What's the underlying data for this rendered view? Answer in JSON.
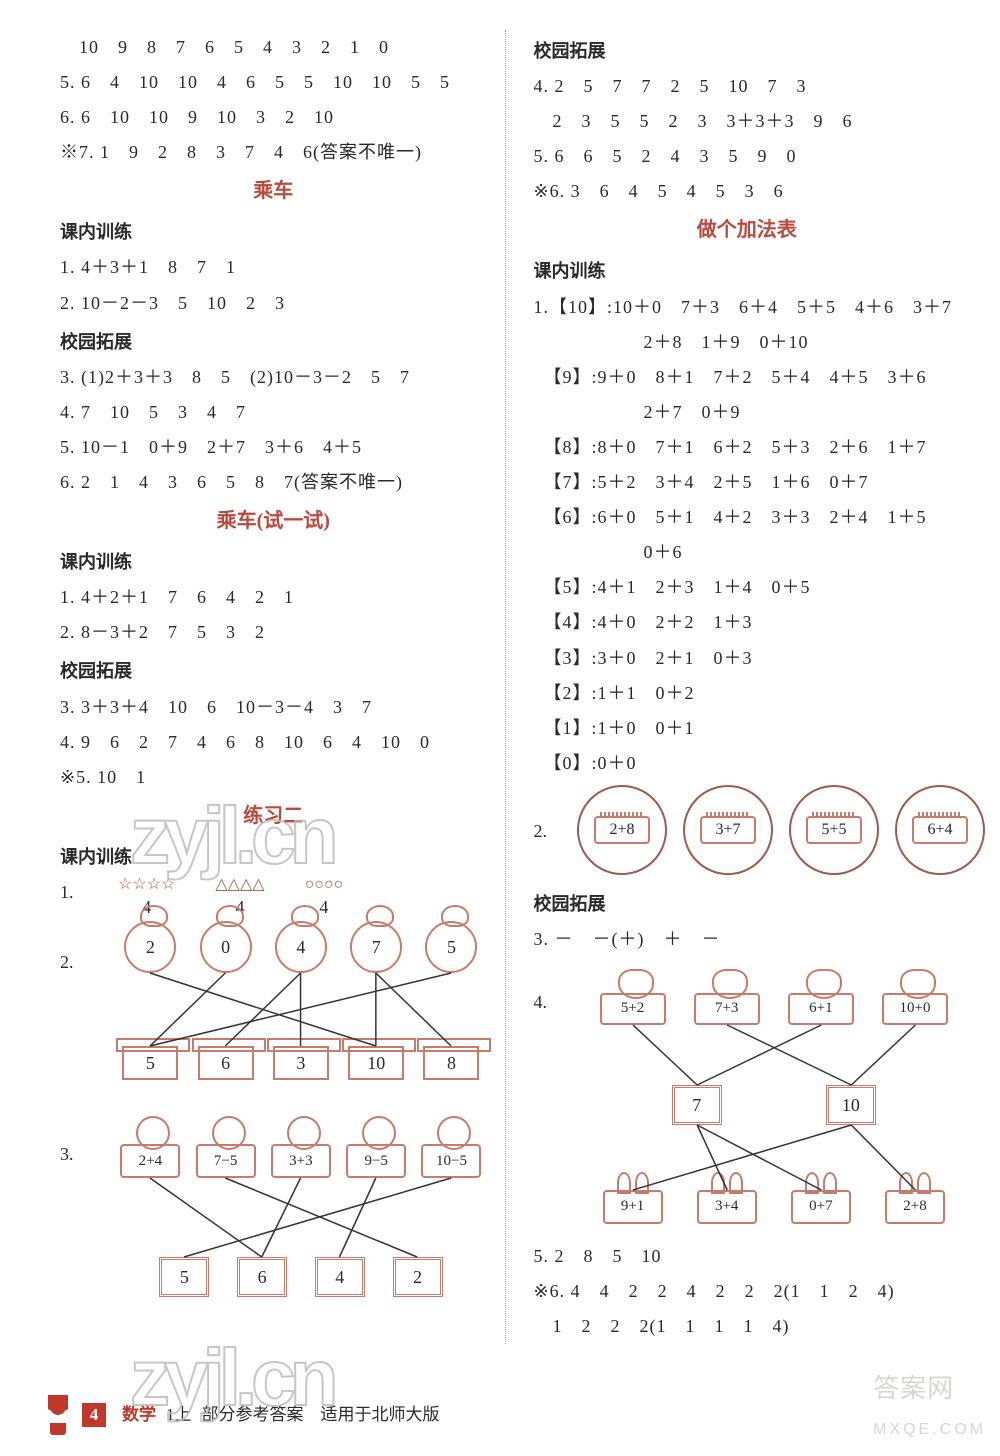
{
  "left": {
    "lines_top": [
      "　10　9　8　7　6　5　4　3　2　1　0",
      "5. 6　4　10　10　4　6　5　5　10　10　5　5",
      "6. 6　10　10　9　10　3　2　10",
      "※7. 1　9　2　8　3　7　4　6(答案不唯一)"
    ],
    "h1": "乘车",
    "sub1": "课内训练",
    "sec1": [
      "1. 4＋3＋1　8　7　1",
      "2. 10－2－3　5　10　2　3"
    ],
    "sub2": "校园拓展",
    "sec2": [
      "3. (1)2＋3＋3　8　5　(2)10－3－2　5　7",
      "4. 7　10　5　3　4　7",
      "5. 10－1　0＋9　2＋7　3＋6　4＋5",
      "6. 2　1　4　3　6　5　8　7(答案不唯一)"
    ],
    "h2": "乘车(试一试)",
    "sub3": "课内训练",
    "sec3": [
      "1. 4＋2＋1　7　6　4　2　1",
      "2. 8－3＋2　7　5　3　2"
    ],
    "sub4": "校园拓展",
    "sec4": [
      "3. 3＋3＋4　10　6　10－3－4　3　7",
      "4. 9　6　2　7　4　6　8　10　6　4　10　0",
      "※5. 10　1"
    ],
    "h3": "练习二",
    "sub5": "课内训练",
    "q1": {
      "label": "1.",
      "cells": [
        {
          "shapes": "☆☆☆☆",
          "num": "4"
        },
        {
          "shapes": "△△△△",
          "num": "4"
        },
        {
          "shapes": "○○○○",
          "num": "4"
        }
      ]
    },
    "q2": {
      "label": "2.",
      "top": [
        "2",
        "0",
        "4",
        "7",
        "5"
      ],
      "bot": [
        "5",
        "6",
        "3",
        "10",
        "8"
      ],
      "edges": [
        [
          0,
          3
        ],
        [
          1,
          0
        ],
        [
          2,
          2
        ],
        [
          2,
          1
        ],
        [
          3,
          4
        ],
        [
          3,
          3
        ],
        [
          4,
          0
        ]
      ]
    },
    "q3": {
      "label": "3.",
      "top": [
        "2+4",
        "7−5",
        "3+3",
        "9−5",
        "10−5"
      ],
      "bot": [
        "5",
        "6",
        "4",
        "2"
      ],
      "edges": [
        [
          0,
          1
        ],
        [
          1,
          3
        ],
        [
          2,
          1
        ],
        [
          3,
          2
        ],
        [
          4,
          0
        ]
      ]
    }
  },
  "right": {
    "sub1": "校园拓展",
    "sec1": [
      "4. 2　5　7　7　2　5　10　7　3",
      "　2　3　5　5　2　3　3＋3＋3　9　6",
      "5. 6　6　5　2　4　3　5　9　0",
      "※6. 3　6　4　5　4　5　3　6"
    ],
    "h1": "做个加法表",
    "sub2": "课内训练",
    "sec2": [
      "1.【10】:10＋0　7＋3　6＋4　5＋5　4＋6　3＋7",
      "　　2＋8　1＋9　0＋10",
      "　【9】:9＋0　8＋1　7＋2　5＋4　4＋5　3＋6",
      "　　2＋7　0＋9",
      "　【8】:8＋0　7＋1　6＋2　5＋3　2＋6　1＋7",
      "　【7】:5＋2　3＋4　2＋5　1＋6　0＋7",
      "　【6】:6＋0　5＋1　4＋2　3＋3　2＋4　1＋5",
      "　　0＋6",
      "　【5】:4＋1　2＋3　1＋4　0＋5",
      "　【4】:4＋0　2＋2　1＋3",
      "　【3】:3＋0　2＋1　0＋3",
      "　【2】:1＋1　0＋2",
      "　【1】:1＋0　0＋1",
      "　【0】:0＋0"
    ],
    "q2": {
      "label": "2.",
      "circles": [
        "2+8",
        "3+7",
        "5+5",
        "6+4"
      ]
    },
    "sub3": "校园拓展",
    "sec3": [
      "3. －　－(＋)　＋　－"
    ],
    "q4": {
      "label": "4.",
      "top": [
        "5+2",
        "7+3",
        "6+1",
        "10+0"
      ],
      "mid": [
        "7",
        "10"
      ],
      "bot": [
        "9+1",
        "3+4",
        "0+7",
        "2+8"
      ],
      "edges_tm": [
        [
          0,
          0
        ],
        [
          1,
          1
        ],
        [
          2,
          0
        ],
        [
          3,
          1
        ]
      ],
      "edges_mb": [
        [
          0,
          1
        ],
        [
          0,
          2
        ],
        [
          1,
          0
        ],
        [
          1,
          3
        ]
      ]
    },
    "sec4": [
      "5. 2　8　5　10",
      "※6. 4　4　2　2　4　2　2　2(1　1　2　4)",
      "　1　2　2　2(1　1　1　1　4)"
    ]
  },
  "footer": {
    "page": "4",
    "subject": "数学",
    "grade": "1上",
    "desc": "部分参考答案　适用于北师大版"
  },
  "watermark": "zyjl.cn",
  "wm2_top": "答案网",
  "wm2_bot": "MXQE.COM",
  "colors": {
    "red": "#b84a3e",
    "brown": "#9c5a50",
    "text": "#2a2a2a"
  }
}
